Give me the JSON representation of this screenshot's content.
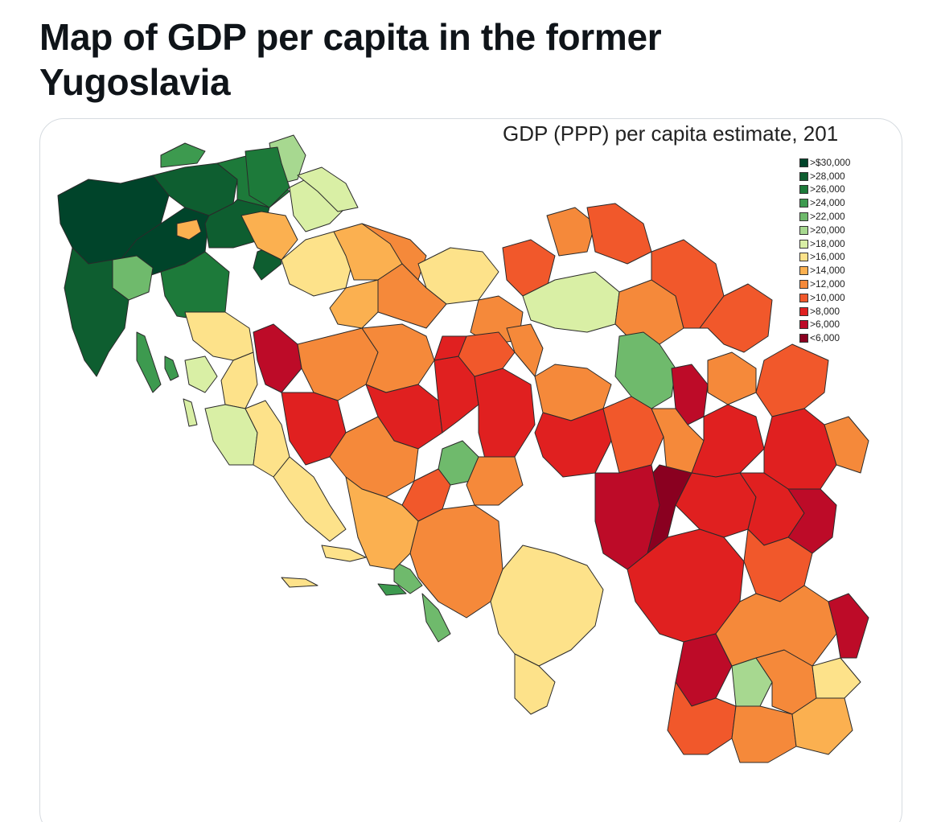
{
  "post": {
    "title": "Map of GDP per capita in the former Yugoslavia"
  },
  "map": {
    "heading": "GDP (PPP) per capita estimate, 201\u0003",
    "legend": [
      {
        "label": ">$30,000",
        "color": "#00442a"
      },
      {
        "label": ">28,000",
        "color": "#0e5e30"
      },
      {
        "label": ">26,000",
        "color": "#1d7a3a"
      },
      {
        "label": ">24,000",
        "color": "#3d9a4f"
      },
      {
        "label": ">22,000",
        "color": "#6fba6c"
      },
      {
        "label": ">20,000",
        "color": "#a7d890"
      },
      {
        "label": ">18,000",
        "color": "#d9efa5"
      },
      {
        "label": ">16,000",
        "color": "#fde28a"
      },
      {
        "label": ">14,000",
        "color": "#fbb050"
      },
      {
        "label": ">12,000",
        "color": "#f5893a"
      },
      {
        "label": ">10,000",
        "color": "#f1582b"
      },
      {
        "label": ">8,000",
        "color": "#e02020"
      },
      {
        "label": ">6,000",
        "color": "#bd0b28"
      },
      {
        "label": "<6,000",
        "color": "#8a0020"
      }
    ]
  }
}
